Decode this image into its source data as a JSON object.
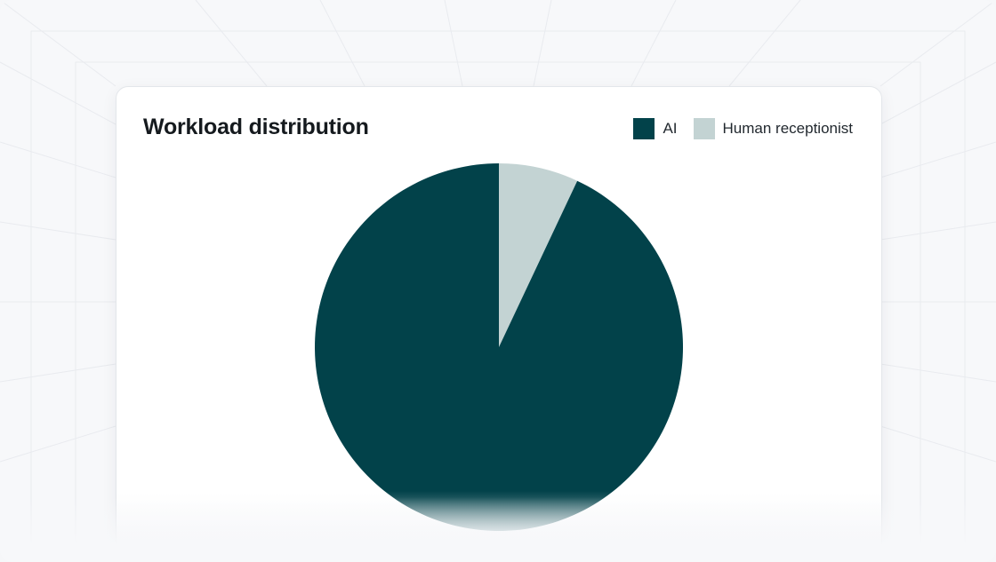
{
  "chart_data": {
    "type": "pie",
    "title": "Workload distribution",
    "slices": [
      {
        "label": "Human receptionist",
        "value": 7,
        "color": "#c3d3d3"
      },
      {
        "label": "AI",
        "value": 93,
        "color": "#02424a"
      }
    ],
    "legend": {
      "placement": "top-right",
      "items": [
        {
          "label": "AI",
          "color": "#02424a"
        },
        {
          "label": "Human receptionist",
          "color": "#c3d3d3"
        }
      ]
    }
  }
}
